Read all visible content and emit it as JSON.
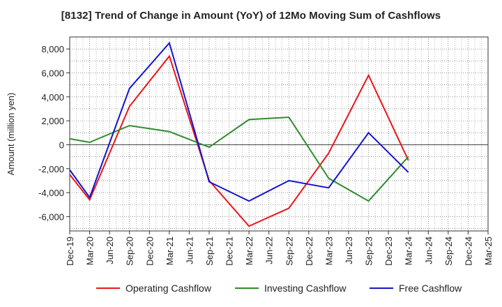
{
  "chart_data": {
    "type": "line",
    "title": "[8132]  Trend of Change in Amount (YoY) of 12Mo Moving Sum of Cashflows",
    "xlabel": "",
    "ylabel": "Amount (million yen)",
    "ylim": [
      -7200,
      9000
    ],
    "yticks": [
      -6000,
      -4000,
      -2000,
      0,
      2000,
      4000,
      6000,
      8000
    ],
    "ytick_labels": [
      "-6,000",
      "-4,000",
      "-2,000",
      "0",
      "2,000",
      "4,000",
      "6,000",
      "8,000"
    ],
    "categories": [
      "Dec-19",
      "Mar-20",
      "Jun-20",
      "Sep-20",
      "Dec-20",
      "Mar-21",
      "Jun-21",
      "Sep-21",
      "Dec-21",
      "Mar-22",
      "Jun-22",
      "Sep-22",
      "Dec-22",
      "Mar-23",
      "Jun-23",
      "Sep-23",
      "Dec-23",
      "Mar-24",
      "Jun-24",
      "Sep-24",
      "Dec-24",
      "Mar-25"
    ],
    "grid": true,
    "legend_position": "bottom",
    "series": [
      {
        "name": "Operating Cashflow",
        "color": "#e8161b",
        "values": [
          -2500,
          -4600,
          null,
          3200,
          null,
          7400,
          null,
          -3000,
          null,
          -6800,
          null,
          -5300,
          null,
          -700,
          null,
          5800,
          null,
          -1300,
          null,
          null,
          null,
          null
        ]
      },
      {
        "name": "Investing Cashflow",
        "color": "#2e8b2e",
        "values": [
          500,
          200,
          null,
          1600,
          null,
          1100,
          null,
          -200,
          null,
          2100,
          null,
          2300,
          null,
          -2800,
          null,
          -4700,
          null,
          -1000,
          null,
          null,
          null,
          null
        ]
      },
      {
        "name": "Free Cashflow",
        "color": "#1414cc",
        "values": [
          -2100,
          -4400,
          null,
          4700,
          null,
          8500,
          null,
          -3100,
          null,
          -4700,
          null,
          -3000,
          null,
          -3600,
          null,
          1000,
          null,
          -2300,
          null,
          null,
          null,
          null
        ]
      }
    ]
  }
}
